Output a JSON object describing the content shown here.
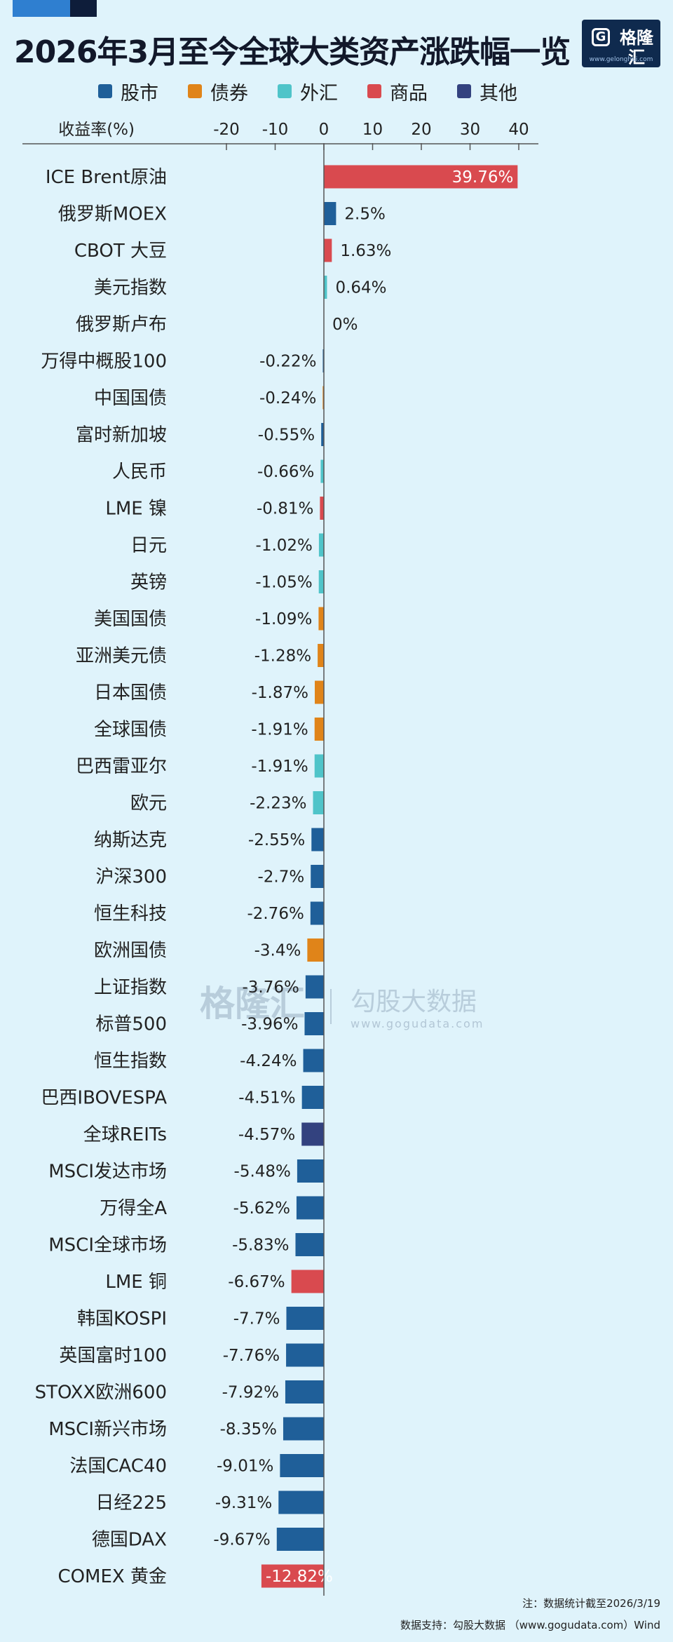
{
  "header": {
    "title": "2026年3月至今全球大类资产涨跌幅一览",
    "logo_name": "格隆汇",
    "logo_url": "www.gelonghui.com"
  },
  "legend": [
    {
      "label": "股市",
      "color": "#1f5f99"
    },
    {
      "label": "债券",
      "color": "#e08419"
    },
    {
      "label": "外汇",
      "color": "#4fc4c9"
    },
    {
      "label": "商品",
      "color": "#d94a4f"
    },
    {
      "label": "其他",
      "color": "#33427f"
    }
  ],
  "watermark": {
    "brand": "格隆汇",
    "name": "勾股大数据",
    "url": "www.gogudata.com"
  },
  "chart_data": {
    "type": "bar",
    "orientation": "horizontal",
    "xlabel": "收益率(%)",
    "xlim": [
      -20,
      40
    ],
    "xticks": [
      -20,
      -10,
      0,
      10,
      20,
      30,
      40
    ],
    "grid": false,
    "legend_position": "top",
    "category_colors": {
      "股市": "#1f5f99",
      "债券": "#e08419",
      "外汇": "#4fc4c9",
      "商品": "#d94a4f",
      "其他": "#33427f"
    },
    "items": [
      {
        "label": "ICE Brent原油",
        "value": 39.76,
        "display": "39.76%",
        "group": "商品"
      },
      {
        "label": "俄罗斯MOEX",
        "value": 2.5,
        "display": "2.5%",
        "group": "股市"
      },
      {
        "label": "CBOT 大豆",
        "value": 1.63,
        "display": "1.63%",
        "group": "商品"
      },
      {
        "label": "美元指数",
        "value": 0.64,
        "display": "0.64%",
        "group": "外汇"
      },
      {
        "label": "俄罗斯卢布",
        "value": 0,
        "display": "0%",
        "group": "外汇"
      },
      {
        "label": "万得中概股100",
        "value": -0.22,
        "display": "-0.22%",
        "group": "股市"
      },
      {
        "label": "中国国债",
        "value": -0.24,
        "display": "-0.24%",
        "group": "债券"
      },
      {
        "label": "富时新加坡",
        "value": -0.55,
        "display": "-0.55%",
        "group": "股市"
      },
      {
        "label": "人民币",
        "value": -0.66,
        "display": "-0.66%",
        "group": "外汇"
      },
      {
        "label": "LME 镍",
        "value": -0.81,
        "display": "-0.81%",
        "group": "商品"
      },
      {
        "label": "日元",
        "value": -1.02,
        "display": "-1.02%",
        "group": "外汇"
      },
      {
        "label": "英镑",
        "value": -1.05,
        "display": "-1.05%",
        "group": "外汇"
      },
      {
        "label": "美国国债",
        "value": -1.09,
        "display": "-1.09%",
        "group": "债券"
      },
      {
        "label": "亚洲美元债",
        "value": -1.28,
        "display": "-1.28%",
        "group": "债券"
      },
      {
        "label": "日本国债",
        "value": -1.87,
        "display": "-1.87%",
        "group": "债券"
      },
      {
        "label": "全球国债",
        "value": -1.91,
        "display": "-1.91%",
        "group": "债券"
      },
      {
        "label": "巴西雷亚尔",
        "value": -1.91,
        "display": "-1.91%",
        "group": "外汇"
      },
      {
        "label": "欧元",
        "value": -2.23,
        "display": "-2.23%",
        "group": "外汇"
      },
      {
        "label": "纳斯达克",
        "value": -2.55,
        "display": "-2.55%",
        "group": "股市"
      },
      {
        "label": "沪深300",
        "value": -2.7,
        "display": "-2.7%",
        "group": "股市"
      },
      {
        "label": "恒生科技",
        "value": -2.76,
        "display": "-2.76%",
        "group": "股市"
      },
      {
        "label": "欧洲国债",
        "value": -3.4,
        "display": "-3.4%",
        "group": "债券"
      },
      {
        "label": "上证指数",
        "value": -3.76,
        "display": "-3.76%",
        "group": "股市"
      },
      {
        "label": "标普500",
        "value": -3.96,
        "display": "-3.96%",
        "group": "股市"
      },
      {
        "label": "恒生指数",
        "value": -4.24,
        "display": "-4.24%",
        "group": "股市"
      },
      {
        "label": "巴西IBOVESPA",
        "value": -4.51,
        "display": "-4.51%",
        "group": "股市"
      },
      {
        "label": "全球REITs",
        "value": -4.57,
        "display": "-4.57%",
        "group": "其他"
      },
      {
        "label": "MSCI发达市场",
        "value": -5.48,
        "display": "-5.48%",
        "group": "股市"
      },
      {
        "label": "万得全A",
        "value": -5.62,
        "display": "-5.62%",
        "group": "股市"
      },
      {
        "label": "MSCI全球市场",
        "value": -5.83,
        "display": "-5.83%",
        "group": "股市"
      },
      {
        "label": "LME 铜",
        "value": -6.67,
        "display": "-6.67%",
        "group": "商品"
      },
      {
        "label": "韩国KOSPI",
        "value": -7.7,
        "display": "-7.7%",
        "group": "股市"
      },
      {
        "label": "英国富时100",
        "value": -7.76,
        "display": "-7.76%",
        "group": "股市"
      },
      {
        "label": "STOXX欧洲600",
        "value": -7.92,
        "display": "-7.92%",
        "group": "股市"
      },
      {
        "label": "MSCI新兴市场",
        "value": -8.35,
        "display": "-8.35%",
        "group": "股市"
      },
      {
        "label": "法国CAC40",
        "value": -9.01,
        "display": "-9.01%",
        "group": "股市"
      },
      {
        "label": "日经225",
        "value": -9.31,
        "display": "-9.31%",
        "group": "股市"
      },
      {
        "label": "德国DAX",
        "value": -9.67,
        "display": "-9.67%",
        "group": "股市"
      },
      {
        "label": "COMEX 黄金",
        "value": -12.82,
        "display": "-12.82%",
        "group": "商品"
      }
    ]
  },
  "footer": {
    "note": "注：数据统计截至2026/3/19",
    "source": "数据支持：勾股大数据 （www.gogudata.com）Wind"
  }
}
